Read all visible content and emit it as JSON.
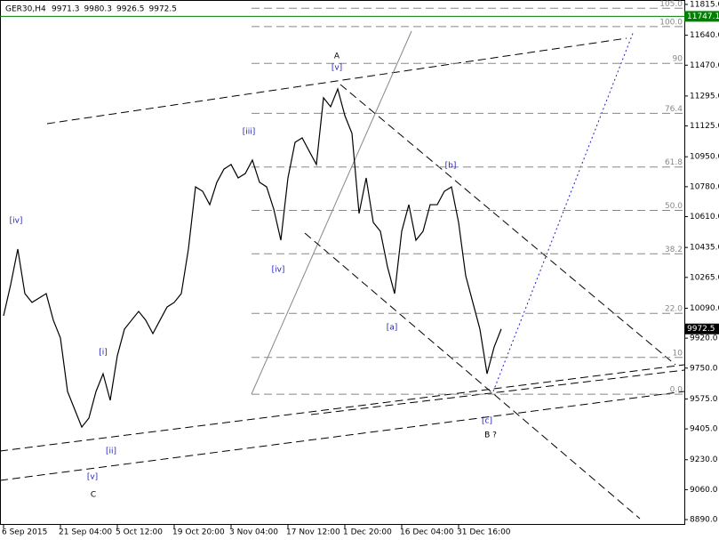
{
  "chart_data": {
    "type": "line",
    "title": "GER30,H4",
    "ohlc": [
      9971.3,
      9980.3,
      9926.5,
      9972.5
    ],
    "categories": [
      "6 Sep 2015",
      null,
      null,
      null,
      null,
      null,
      null,
      null,
      "21 Sep 04:00",
      null,
      null,
      null,
      null,
      null,
      null,
      null,
      "5 Oct 12:00",
      null,
      null,
      null,
      null,
      null,
      null,
      null,
      "19 Oct 20:00",
      null,
      null,
      null,
      null,
      null,
      null,
      null,
      "3 Nov 04:00",
      null,
      null,
      null,
      null,
      null,
      null,
      null,
      "17 Nov 12:00",
      null,
      null,
      null,
      null,
      null,
      null,
      null,
      "1 Dec 20:00",
      null,
      null,
      null,
      null,
      null,
      null,
      null,
      "16 Dec 04:00",
      null,
      null,
      null,
      null,
      null,
      null,
      null,
      "31 Dec 16:00",
      null,
      null,
      null,
      null,
      null,
      null
    ],
    "series": [
      {
        "name": "GER30",
        "color": "#000000",
        "values": [
          10047,
          10224,
          10426,
          10173,
          10123,
          10148,
          10173,
          10022,
          9921,
          9617,
          9516,
          9415,
          9466,
          9617,
          9718,
          9567,
          9820,
          9971,
          10022,
          10072,
          10022,
          9946,
          10022,
          10097,
          10123,
          10173,
          10426,
          10779,
          10754,
          10678,
          10805,
          10880,
          10906,
          10830,
          10855,
          10931,
          10805,
          10779,
          10653,
          10476,
          10830,
          11032,
          11057,
          10981,
          10906,
          11285,
          11234,
          11335,
          11184,
          11083,
          10628,
          10830,
          10577,
          10527,
          10325,
          10173,
          10527,
          10678,
          10476,
          10527,
          10678,
          10678,
          10754,
          10779,
          10577,
          10274,
          10123,
          9971,
          9718,
          9870,
          9972.5
        ]
      }
    ],
    "ylim": [
      8860,
      11840
    ],
    "yticks": [
      {
        "value": 11815,
        "label": "11815.0"
      },
      {
        "value": 11640,
        "label": "11640.0"
      },
      {
        "value": 11470,
        "label": "11470.0"
      },
      {
        "value": 11295,
        "label": "11295.0"
      },
      {
        "value": 11125,
        "label": "11125.0"
      },
      {
        "value": 10950,
        "label": "10950.0"
      },
      {
        "value": 10780,
        "label": "10780.0"
      },
      {
        "value": 10610,
        "label": "10610.0"
      },
      {
        "value": 10435,
        "label": "10435.0"
      },
      {
        "value": 10265,
        "label": "10265.0"
      },
      {
        "value": 10090,
        "label": "10090.0"
      },
      {
        "value": 9920,
        "label": "9920.0"
      },
      {
        "value": 9750,
        "label": "9750.0"
      },
      {
        "value": 9575,
        "label": "9575.0"
      },
      {
        "value": 9405,
        "label": "9405.0"
      },
      {
        "value": 9230,
        "label": "9230.0"
      },
      {
        "value": 9060,
        "label": "9060.0"
      },
      {
        "value": 8890,
        "label": "8890.0"
      }
    ],
    "hline": {
      "value": 11747.1,
      "color": "#008000"
    },
    "fibo": {
      "price_0": 9602,
      "price_100": 11689,
      "color": "#888888",
      "levels": [
        {
          "value": 105,
          "label": "105.0"
        },
        {
          "value": 100,
          "label": "100.0"
        },
        90,
        76.4,
        61.8,
        {
          "value": 50,
          "label": "50.0"
        },
        38.2,
        {
          "value": 22,
          "label": "22.0"
        },
        10,
        {
          "value": 0,
          "label": "0.0"
        }
      ]
    },
    "annotations": [
      "[iv]",
      "[i]",
      "[ii]",
      "[v]",
      "C",
      "[iii]",
      "[iv]",
      "A",
      "[v]",
      "[a]",
      "[b]",
      "[c]",
      "B ?"
    ]
  }
}
